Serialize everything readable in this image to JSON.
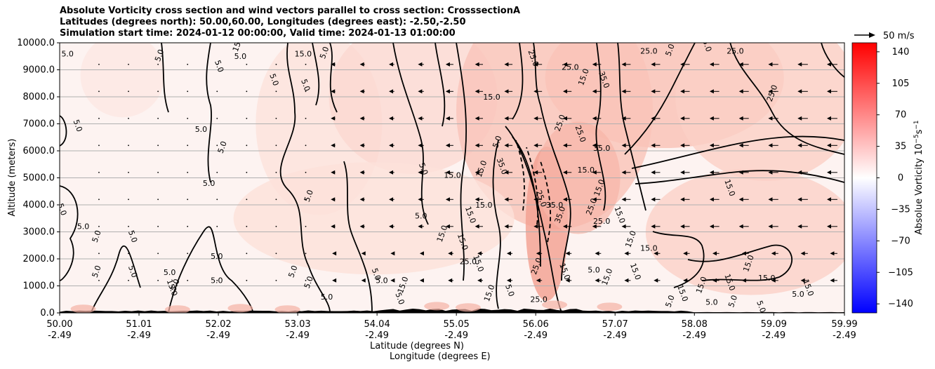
{
  "chart_data": {
    "type": "heatmap",
    "title_lines": [
      "Absolute Vorticity cross section and wind vectors parallel to cross section: CrosssectionA",
      "Latitudes (degrees north): 50.00,60.00, Longitudes (degrees east): -2.50,-2.50",
      "Simulation start time: 2024-01-12 00:00:00, Valid time: 2024-01-13 01:00:00"
    ],
    "ylabel": "Altitude (meters)",
    "xlabel_lines": [
      "Latitude (degrees N)",
      "Longitude (degrees E)"
    ],
    "ylim": [
      0,
      10000
    ],
    "xlim": [
      50.0,
      59.99
    ],
    "y_ticks": [
      "0.0",
      "1000.0",
      "2000.0",
      "3000.0",
      "4000.0",
      "5000.0",
      "6000.0",
      "7000.0",
      "8000.0",
      "9000.0",
      "10000.0"
    ],
    "x_ticks": [
      {
        "lat": "50.00",
        "lon": "-2.49"
      },
      {
        "lat": "51.01",
        "lon": "-2.49"
      },
      {
        "lat": "52.02",
        "lon": "-2.49"
      },
      {
        "lat": "53.03",
        "lon": "-2.49"
      },
      {
        "lat": "54.04",
        "lon": "-2.49"
      },
      {
        "lat": "55.05",
        "lon": "-2.49"
      },
      {
        "lat": "56.06",
        "lon": "-2.49"
      },
      {
        "lat": "57.07",
        "lon": "-2.49"
      },
      {
        "lat": "58.08",
        "lon": "-2.49"
      },
      {
        "lat": "59.09",
        "lon": "-2.49"
      },
      {
        "lat": "59.99",
        "lon": "-2.49"
      }
    ],
    "grid": "horizontal",
    "colorbar": {
      "label": "Absolue Vorticity 10$^{-5}$s$^{-1}$",
      "label_display": "Absolue Vorticity 10",
      "label_sup": "−5",
      "label_unit": "s",
      "label_unit_sup": "−1",
      "range": [
        -150,
        150
      ],
      "ticks": [
        "140",
        "105",
        "70",
        "35",
        "0",
        "−35",
        "−70",
        "−105",
        "−140"
      ],
      "tick_values": [
        140,
        105,
        70,
        35,
        0,
        -35,
        -70,
        -105,
        -140
      ],
      "colormap": "bwr",
      "color_low": "#0000ff",
      "color_mid": "#ffffff",
      "color_high": "#ff0000"
    },
    "quiver_key": {
      "label": "50 m/s"
    },
    "contour_labels": [
      {
        "text": "5.0",
        "lat": 50.1,
        "alt": 9500
      },
      {
        "text": "5.0",
        "lat": 51.3,
        "alt": 9500
      },
      {
        "text": "5.0",
        "lat": 52.0,
        "alt": 9100
      },
      {
        "text": "5.0",
        "lat": 52.3,
        "alt": 9400
      },
      {
        "text": "15.0",
        "lat": 52.3,
        "alt": 9950
      },
      {
        "text": "5.0",
        "lat": 52.7,
        "alt": 8600
      },
      {
        "text": "15.0",
        "lat": 53.1,
        "alt": 9500
      },
      {
        "text": "5.0",
        "lat": 53.4,
        "alt": 9600
      },
      {
        "text": "25.0",
        "lat": 56.0,
        "alt": 9400
      },
      {
        "text": "25.0",
        "lat": 56.5,
        "alt": 9000
      },
      {
        "text": "15.0",
        "lat": 56.7,
        "alt": 8700
      },
      {
        "text": "35.0",
        "lat": 56.9,
        "alt": 8600
      },
      {
        "text": "25.0",
        "lat": 57.5,
        "alt": 9600
      },
      {
        "text": "5.0",
        "lat": 57.8,
        "alt": 9700
      },
      {
        "text": "25.0",
        "lat": 58.2,
        "alt": 9950
      },
      {
        "text": "25.0",
        "lat": 58.6,
        "alt": 9600
      },
      {
        "text": "25.0",
        "lat": 59.1,
        "alt": 8100
      },
      {
        "text": "5.0",
        "lat": 50.2,
        "alt": 6900
      },
      {
        "text": "5.0",
        "lat": 51.8,
        "alt": 6700
      },
      {
        "text": "5.0",
        "lat": 52.1,
        "alt": 6100
      },
      {
        "text": "5.0",
        "lat": 53.1,
        "alt": 8400
      },
      {
        "text": "15.0",
        "lat": 55.5,
        "alt": 7900
      },
      {
        "text": "25.0",
        "lat": 56.4,
        "alt": 7000
      },
      {
        "text": "25.0",
        "lat": 56.6,
        "alt": 6600
      },
      {
        "text": "35.0",
        "lat": 56.9,
        "alt": 6000
      },
      {
        "text": "5.0",
        "lat": 55.6,
        "alt": 6300
      },
      {
        "text": "5.0",
        "lat": 54.6,
        "alt": 5300
      },
      {
        "text": "15.0",
        "lat": 55.0,
        "alt": 5000
      },
      {
        "text": "15.0",
        "lat": 55.4,
        "alt": 5300
      },
      {
        "text": "35.0",
        "lat": 55.6,
        "alt": 5400
      },
      {
        "text": "15.0",
        "lat": 56.7,
        "alt": 5200
      },
      {
        "text": "15.0",
        "lat": 56.9,
        "alt": 4600
      },
      {
        "text": "25.0",
        "lat": 56.1,
        "alt": 4200
      },
      {
        "text": "35.0",
        "lat": 56.3,
        "alt": 3900
      },
      {
        "text": "25.0",
        "lat": 56.8,
        "alt": 3900
      },
      {
        "text": "15.0",
        "lat": 57.1,
        "alt": 3600
      },
      {
        "text": "25.0",
        "lat": 56.9,
        "alt": 3300
      },
      {
        "text": "35.0",
        "lat": 56.4,
        "alt": 3600
      },
      {
        "text": "15.0",
        "lat": 58.5,
        "alt": 4600
      },
      {
        "text": "5.0",
        "lat": 51.9,
        "alt": 4700
      },
      {
        "text": "5.0",
        "lat": 53.2,
        "alt": 4300
      },
      {
        "text": "15.0",
        "lat": 55.2,
        "alt": 3600
      },
      {
        "text": "15.0",
        "lat": 55.4,
        "alt": 3900
      },
      {
        "text": "15.0",
        "lat": 54.9,
        "alt": 2900
      },
      {
        "text": "15.0",
        "lat": 55.1,
        "alt": 2600
      },
      {
        "text": "5.0",
        "lat": 54.6,
        "alt": 3500
      },
      {
        "text": "15.0",
        "lat": 57.3,
        "alt": 2700
      },
      {
        "text": "5.0",
        "lat": 50.0,
        "alt": 3800
      },
      {
        "text": "5.0",
        "lat": 50.3,
        "alt": 3100
      },
      {
        "text": "5.0",
        "lat": 50.5,
        "alt": 2800
      },
      {
        "text": "5.0",
        "lat": 50.9,
        "alt": 2800
      },
      {
        "text": "5.0",
        "lat": 52.0,
        "alt": 2000
      },
      {
        "text": "5.0",
        "lat": 53.0,
        "alt": 1500
      },
      {
        "text": "15.0",
        "lat": 55.3,
        "alt": 1800
      },
      {
        "text": "25.0",
        "lat": 55.2,
        "alt": 1800
      },
      {
        "text": "25.0",
        "lat": 56.1,
        "alt": 1700
      },
      {
        "text": "15.0",
        "lat": 56.4,
        "alt": 1500
      },
      {
        "text": "5.0",
        "lat": 56.8,
        "alt": 1500
      },
      {
        "text": "15.0",
        "lat": 57.0,
        "alt": 1300
      },
      {
        "text": "15.0",
        "lat": 57.3,
        "alt": 1500
      },
      {
        "text": "15.0",
        "lat": 57.5,
        "alt": 2300
      },
      {
        "text": "15.0",
        "lat": 58.8,
        "alt": 1800
      },
      {
        "text": "15.0",
        "lat": 59.5,
        "alt": 900
      },
      {
        "text": "5.0",
        "lat": 59.4,
        "alt": 600
      },
      {
        "text": "15.0",
        "lat": 58.2,
        "alt": 1000
      },
      {
        "text": "15.0",
        "lat": 58.5,
        "alt": 1100
      },
      {
        "text": "15.0",
        "lat": 59.0,
        "alt": 1200
      },
      {
        "text": "5.0",
        "lat": 50.5,
        "alt": 1500
      },
      {
        "text": "5.0",
        "lat": 50.9,
        "alt": 1500
      },
      {
        "text": "5.0",
        "lat": 51.4,
        "alt": 1400
      },
      {
        "text": "5.0",
        "lat": 51.5,
        "alt": 1000
      },
      {
        "text": "15.0",
        "lat": 51.4,
        "alt": 900
      },
      {
        "text": "5.0",
        "lat": 52.0,
        "alt": 1100
      },
      {
        "text": "5.0",
        "lat": 53.2,
        "alt": 1100
      },
      {
        "text": "5.0",
        "lat": 54.0,
        "alt": 1400
      },
      {
        "text": "5.0",
        "lat": 54.1,
        "alt": 1100
      },
      {
        "text": "15.0",
        "lat": 54.4,
        "alt": 1000
      },
      {
        "text": "5.0",
        "lat": 54.3,
        "alt": 500
      },
      {
        "text": "5.0",
        "lat": 53.4,
        "alt": 500
      },
      {
        "text": "15.0",
        "lat": 55.5,
        "alt": 700
      },
      {
        "text": "5.0",
        "lat": 55.7,
        "alt": 800
      },
      {
        "text": "25.0",
        "lat": 56.1,
        "alt": 400
      },
      {
        "text": "5.0",
        "lat": 57.8,
        "alt": 400
      },
      {
        "text": "15.0",
        "lat": 57.9,
        "alt": 700
      },
      {
        "text": "5.0",
        "lat": 58.3,
        "alt": 300
      },
      {
        "text": "5.0",
        "lat": 58.6,
        "alt": 400
      },
      {
        "text": "5.0",
        "lat": 58.9,
        "alt": 200
      }
    ]
  }
}
